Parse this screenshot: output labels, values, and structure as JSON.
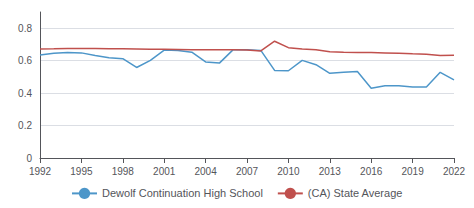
{
  "chart_data": {
    "type": "line",
    "x": [
      1992,
      1993,
      1994,
      1995,
      1996,
      1997,
      1998,
      1999,
      2000,
      2001,
      2002,
      2003,
      2004,
      2005,
      2006,
      2007,
      2008,
      2009,
      2010,
      2011,
      2012,
      2013,
      2014,
      2015,
      2016,
      2017,
      2018,
      2019,
      2020,
      2021,
      2022
    ],
    "series": [
      {
        "name": "Dewolf Continuation High School",
        "color": "#4d96c9",
        "values": [
          0.635,
          0.645,
          0.65,
          0.648,
          0.632,
          0.618,
          0.612,
          0.558,
          0.602,
          0.665,
          0.663,
          0.652,
          0.592,
          0.585,
          0.668,
          0.668,
          0.663,
          0.54,
          0.538,
          0.602,
          0.575,
          0.522,
          0.528,
          0.533,
          0.43,
          0.445,
          0.445,
          0.438,
          0.438,
          0.528,
          0.482
        ]
      },
      {
        "name": "(CA) State Average",
        "color": "#c0504d",
        "values": [
          0.672,
          0.673,
          0.675,
          0.675,
          0.675,
          0.674,
          0.673,
          0.672,
          0.671,
          0.67,
          0.669,
          0.668,
          0.668,
          0.668,
          0.667,
          0.665,
          0.66,
          0.72,
          0.68,
          0.672,
          0.668,
          0.655,
          0.652,
          0.65,
          0.65,
          0.648,
          0.645,
          0.642,
          0.64,
          0.632,
          0.634
        ]
      }
    ],
    "xlim": [
      1992,
      2022
    ],
    "xticks": [
      1992,
      1995,
      1998,
      2001,
      2004,
      2007,
      2010,
      2013,
      2016,
      2019,
      2022
    ],
    "ylim": [
      0,
      0.9
    ],
    "yticks": [
      0,
      0.2,
      0.4,
      0.6,
      0.8
    ],
    "grid": true,
    "legend": "bottom"
  }
}
